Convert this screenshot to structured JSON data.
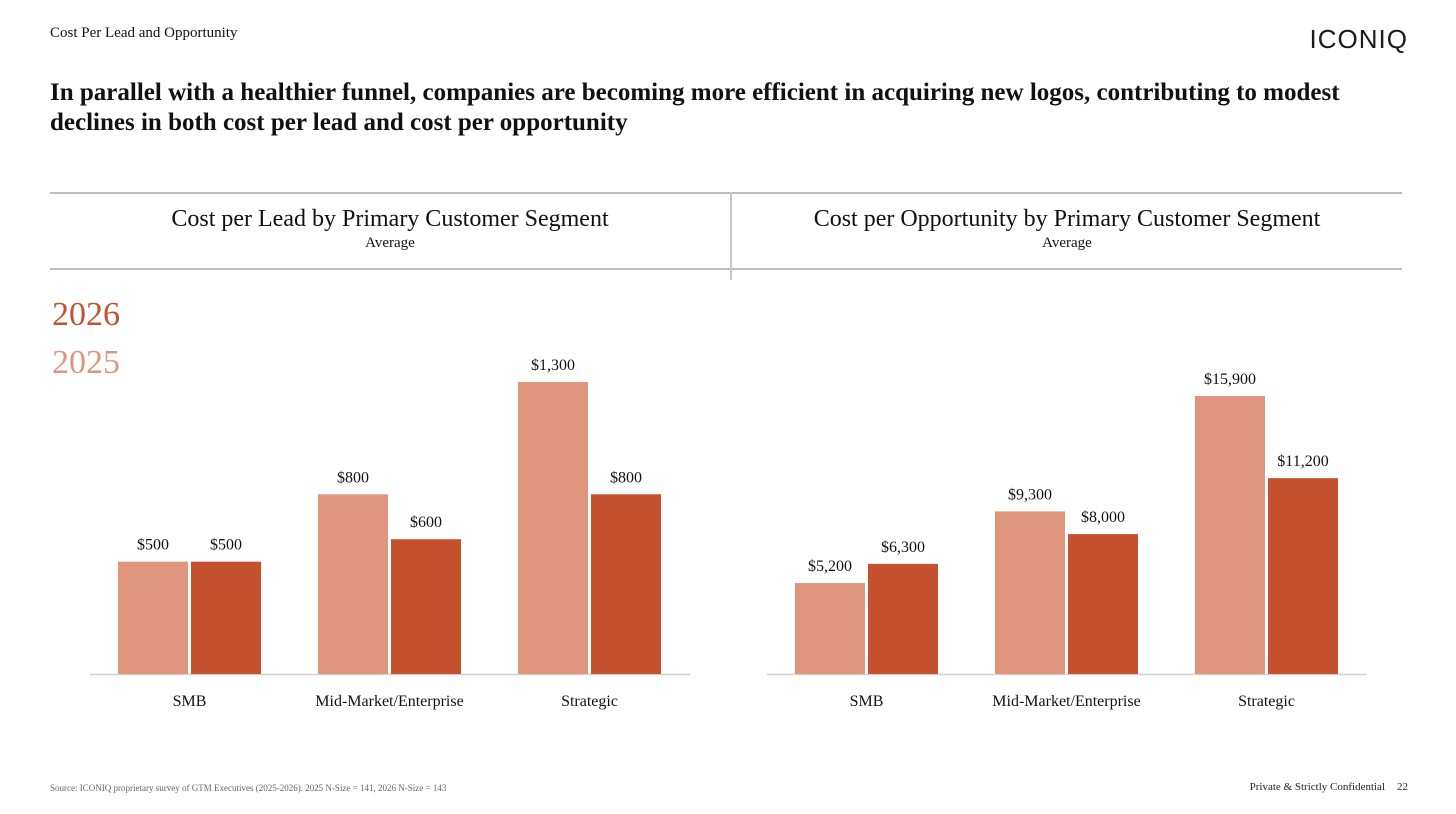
{
  "header": {
    "section": "Cost Per Lead and Opportunity",
    "logo": "ICONIQ",
    "headline": "In parallel with a healthier funnel, companies are becoming more efficient in acquiring new logos, contributing to modest declines in both cost per lead and cost per opportunity"
  },
  "legend": [
    {
      "label": "2026",
      "color": "#C5512E"
    },
    {
      "label": "2025",
      "color": "#E0967E"
    }
  ],
  "chart_data": [
    {
      "type": "bar",
      "title": "Cost per Lead by Primary Customer Segment",
      "subtitle": "Average",
      "categories": [
        "SMB",
        "Mid-Market/Enterprise",
        "Strategic"
      ],
      "series": [
        {
          "name": "2025",
          "color": "#E0967E",
          "values": [
            500,
            800,
            1300
          ],
          "labels": [
            "$500",
            "$800",
            "$1,300"
          ]
        },
        {
          "name": "2026",
          "color": "#C5512E",
          "values": [
            500,
            600,
            800
          ],
          "labels": [
            "$500",
            "$600",
            "$800"
          ]
        }
      ],
      "ylim": [
        0,
        1300
      ]
    },
    {
      "type": "bar",
      "title": "Cost per Opportunity by Primary Customer Segment",
      "subtitle": "Average",
      "categories": [
        "SMB",
        "Mid-Market/Enterprise",
        "Strategic"
      ],
      "series": [
        {
          "name": "2025",
          "color": "#E0967E",
          "values": [
            5200,
            9300,
            15900
          ],
          "labels": [
            "$5,200",
            "$9,300",
            "$15,900"
          ]
        },
        {
          "name": "2026",
          "color": "#C5512E",
          "values": [
            6300,
            8000,
            11200
          ],
          "labels": [
            "$6,300",
            "$8,000",
            "$11,200"
          ]
        }
      ],
      "ylim": [
        0,
        15900
      ]
    }
  ],
  "footer": {
    "source": "Source: ICONIQ proprietary survey of GTM Executives (2025-2026). 2025 N-Size = 141, 2026 N-Size = 143",
    "confidential": "Private & Strictly Confidential",
    "page": "22"
  }
}
